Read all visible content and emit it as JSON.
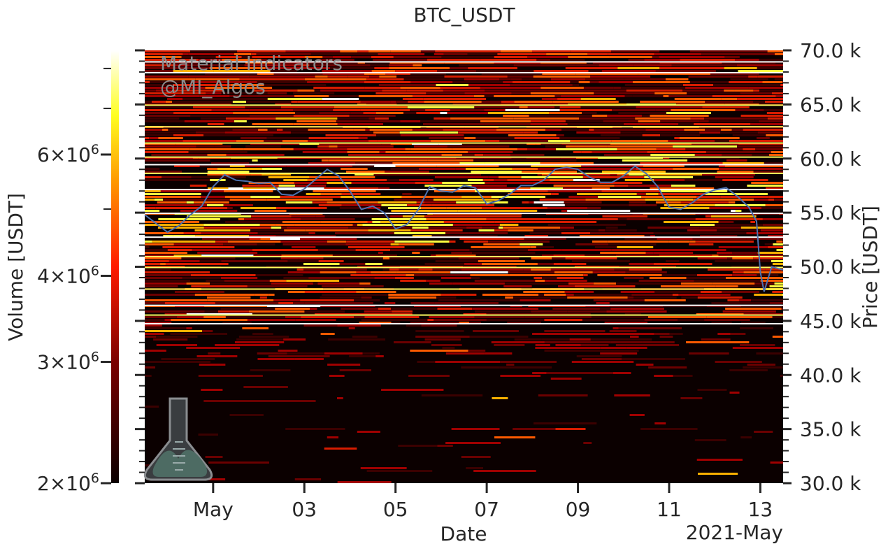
{
  "chart_data": {
    "type": "heatmap",
    "title": "BTC_USDT",
    "xlabel": "Date",
    "ylabel_right": "Price [USDT]",
    "ylim": [
      30000,
      70000
    ],
    "x_range": [
      "2021-04-29T12:00",
      "2021-05-13T12:00"
    ],
    "x_ticks": [
      {
        "date": "2021-05-01",
        "label": "May"
      },
      {
        "date": "2021-05-03",
        "label": "03"
      },
      {
        "date": "2021-05-05",
        "label": "05"
      },
      {
        "date": "2021-05-07",
        "label": "07"
      },
      {
        "date": "2021-05-09",
        "label": "09"
      },
      {
        "date": "2021-05-11",
        "label": "11"
      },
      {
        "date": "2021-05-13",
        "label": "13"
      }
    ],
    "x_offset_label": "2021-May",
    "y_ticks": [
      {
        "value": 30000,
        "label": "30.0 k"
      },
      {
        "value": 35000,
        "label": "35.0 k"
      },
      {
        "value": 40000,
        "label": "40.0 k"
      },
      {
        "value": 45000,
        "label": "45.0 k"
      },
      {
        "value": 50000,
        "label": "50.0 k"
      },
      {
        "value": 55000,
        "label": "55.0 k"
      },
      {
        "value": 60000,
        "label": "60.0 k"
      },
      {
        "value": 65000,
        "label": "65.0 k"
      },
      {
        "value": 70000,
        "label": "70.0 k"
      }
    ],
    "colorbar": {
      "label": "Volume [USDT]",
      "scale": "log",
      "range": [
        2000000,
        8500000
      ],
      "colormap": "hot",
      "ticks": [
        {
          "value": 2000000,
          "mant": "2",
          "exp": "6"
        },
        {
          "value": 3000000,
          "mant": "3",
          "exp": "6"
        },
        {
          "value": 4000000,
          "mant": "4",
          "exp": "6"
        },
        {
          "value": 6000000,
          "mant": "6",
          "exp": "6"
        }
      ]
    },
    "price_series": {
      "color": "#4c72b0",
      "points": [
        [
          "2021-04-29T12:00",
          54800
        ],
        [
          "2021-04-29T18:00",
          54000
        ],
        [
          "2021-04-30T00:00",
          53200
        ],
        [
          "2021-04-30T06:00",
          53800
        ],
        [
          "2021-04-30T12:00",
          54800
        ],
        [
          "2021-04-30T18:00",
          55600
        ],
        [
          "2021-05-01T00:00",
          57400
        ],
        [
          "2021-05-01T06:00",
          58500
        ],
        [
          "2021-05-01T12:00",
          58000
        ],
        [
          "2021-05-01T18:00",
          57900
        ],
        [
          "2021-05-02T00:00",
          57700
        ],
        [
          "2021-05-02T06:00",
          57800
        ],
        [
          "2021-05-02T12:00",
          56700
        ],
        [
          "2021-05-02T18:00",
          56600
        ],
        [
          "2021-05-03T00:00",
          57200
        ],
        [
          "2021-05-03T06:00",
          58100
        ],
        [
          "2021-05-03T12:00",
          59000
        ],
        [
          "2021-05-03T18:00",
          58400
        ],
        [
          "2021-05-04T00:00",
          57000
        ],
        [
          "2021-05-04T06:00",
          55300
        ],
        [
          "2021-05-04T12:00",
          55600
        ],
        [
          "2021-05-04T18:00",
          55000
        ],
        [
          "2021-05-05T00:00",
          53500
        ],
        [
          "2021-05-05T06:00",
          53900
        ],
        [
          "2021-05-05T12:00",
          55300
        ],
        [
          "2021-05-05T18:00",
          57400
        ],
        [
          "2021-05-06T00:00",
          57000
        ],
        [
          "2021-05-06T06:00",
          56900
        ],
        [
          "2021-05-06T12:00",
          57500
        ],
        [
          "2021-05-06T18:00",
          57300
        ],
        [
          "2021-05-07T00:00",
          55800
        ],
        [
          "2021-05-07T06:00",
          56100
        ],
        [
          "2021-05-07T12:00",
          56700
        ],
        [
          "2021-05-07T18:00",
          57500
        ],
        [
          "2021-05-08T00:00",
          57500
        ],
        [
          "2021-05-08T06:00",
          58000
        ],
        [
          "2021-05-08T12:00",
          59000
        ],
        [
          "2021-05-08T18:00",
          59200
        ],
        [
          "2021-05-09T00:00",
          59000
        ],
        [
          "2021-05-09T06:00",
          58300
        ],
        [
          "2021-05-09T12:00",
          57800
        ],
        [
          "2021-05-09T18:00",
          57800
        ],
        [
          "2021-05-10T00:00",
          58400
        ],
        [
          "2021-05-10T06:00",
          59300
        ],
        [
          "2021-05-10T12:00",
          58600
        ],
        [
          "2021-05-10T18:00",
          57400
        ],
        [
          "2021-05-11T00:00",
          55500
        ],
        [
          "2021-05-11T06:00",
          55300
        ],
        [
          "2021-05-11T12:00",
          55900
        ],
        [
          "2021-05-11T18:00",
          56700
        ],
        [
          "2021-05-12T00:00",
          57100
        ],
        [
          "2021-05-12T06:00",
          57300
        ],
        [
          "2021-05-12T12:00",
          56500
        ],
        [
          "2021-05-12T18:00",
          55500
        ],
        [
          "2021-05-12T22:00",
          54200
        ],
        [
          "2021-05-13T00:00",
          49500
        ],
        [
          "2021-05-13T02:00",
          47700
        ],
        [
          "2021-05-13T06:00",
          50000
        ],
        [
          "2021-05-13T12:00",
          49700
        ]
      ]
    }
  },
  "watermark": {
    "line1": "Material Indicators",
    "line2": "@MI_Algos",
    "logo_icon": "flask-icon"
  }
}
